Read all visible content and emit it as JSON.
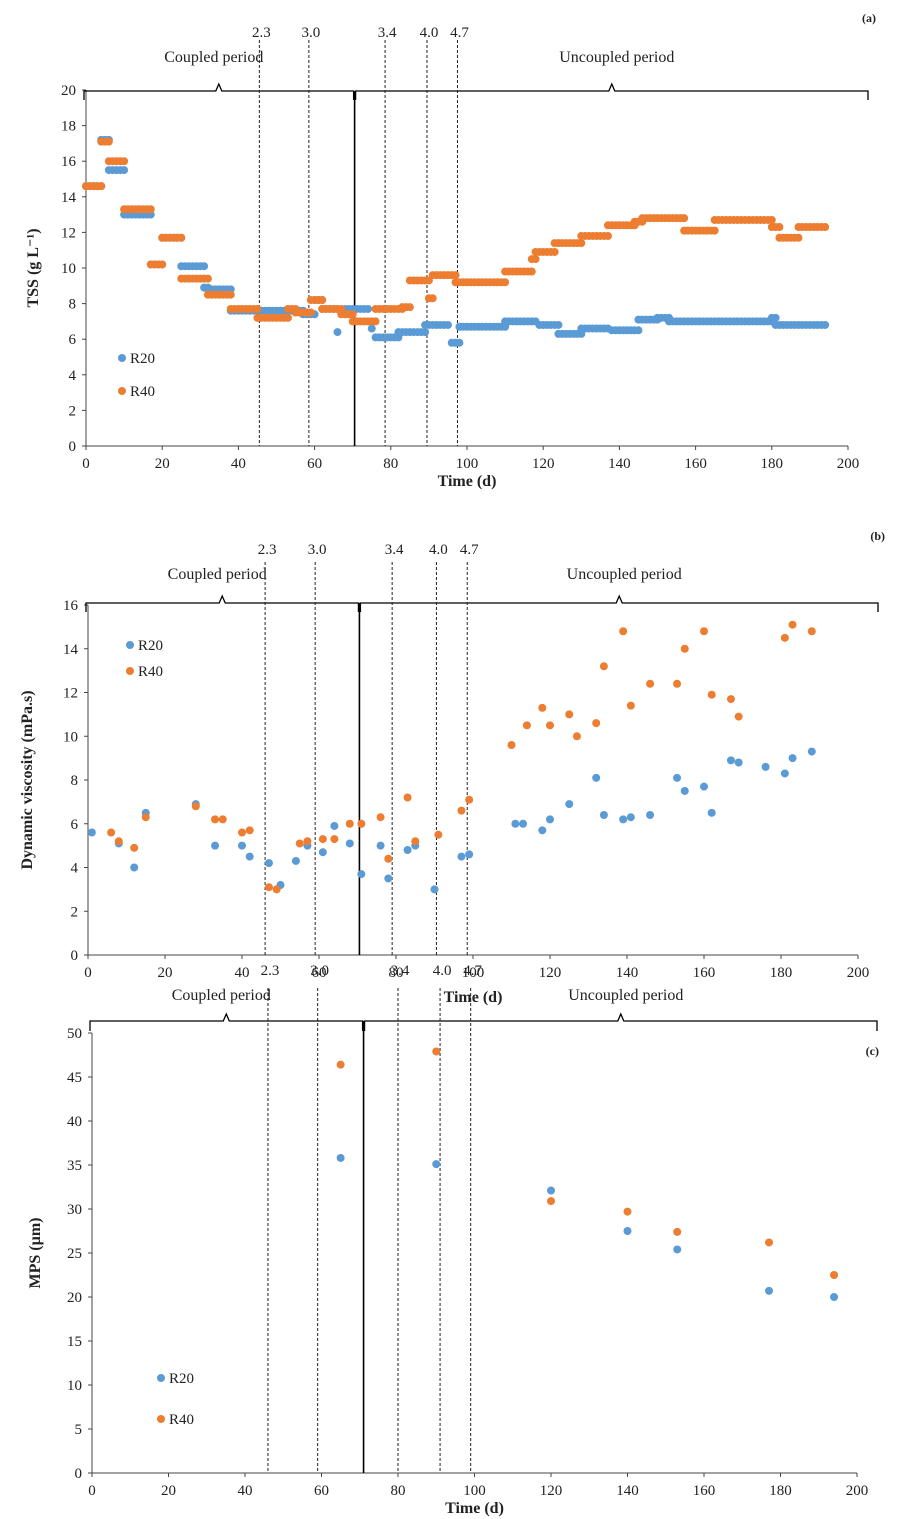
{
  "colors": {
    "R20": "#5b9bd5",
    "R40": "#ed7d31",
    "axis": "#444444",
    "text": "#222222"
  },
  "chart_data": [
    {
      "type": "scatter",
      "panel_label": "(a)",
      "xlabel": "Time (d)",
      "ylabel": "TSS (g L⁻¹)",
      "xlim": [
        0,
        200
      ],
      "ylim": [
        0,
        20
      ],
      "xticks": [
        0,
        20,
        40,
        60,
        80,
        100,
        120,
        140,
        160,
        180,
        200
      ],
      "yticks": [
        0,
        2,
        4,
        6,
        8,
        10,
        12,
        14,
        16,
        18,
        20
      ],
      "grid": false,
      "legend_position": "left",
      "period_labels": [
        "Coupled period",
        "Uncoupled period"
      ],
      "period_split_day": 70.5,
      "markers": [
        {
          "label": "2.3",
          "day": 45.5
        },
        {
          "label": "3.0",
          "day": 58.5
        },
        {
          "label": "3.4",
          "day": 78.5
        },
        {
          "label": "4.0",
          "day": 89.5
        },
        {
          "label": "4.7",
          "day": 97.5
        }
      ],
      "series": [
        {
          "name": "R20",
          "segments": [
            [
              0,
              4,
              14.6
            ],
            [
              4,
              6,
              17.2
            ],
            [
              6,
              10,
              15.5
            ],
            [
              10,
              17,
              13.0
            ],
            [
              17,
              20,
              10.2
            ],
            [
              20,
              25,
              11.7
            ],
            [
              25,
              31,
              10.1
            ],
            [
              31,
              32,
              8.9
            ],
            [
              32,
              38,
              8.8
            ],
            [
              38,
              45,
              7.6
            ],
            [
              45,
              57,
              7.6
            ],
            [
              57,
              60,
              7.4
            ],
            [
              60,
              62,
              8.2
            ],
            [
              62,
              66,
              7.7
            ],
            [
              68,
              74,
              7.7
            ],
            [
              76,
              82,
              6.1
            ],
            [
              82,
              89,
              6.4
            ],
            [
              89,
              95,
              6.8
            ],
            [
              96,
              98,
              5.8
            ],
            [
              98,
              110,
              6.7
            ],
            [
              110,
              118,
              7.0
            ],
            [
              119,
              124,
              6.8
            ],
            [
              124,
              130,
              6.3
            ],
            [
              130,
              137,
              6.6
            ],
            [
              138,
              145,
              6.5
            ],
            [
              145,
              150,
              7.1
            ],
            [
              150,
              153,
              7.2
            ],
            [
              153,
              180,
              7.0
            ],
            [
              180,
              181,
              7.2
            ],
            [
              181,
              194,
              6.8
            ]
          ],
          "points": [
            [
              66,
              6.4
            ],
            [
              75,
              6.6
            ]
          ]
        },
        {
          "name": "R40",
          "segments": [
            [
              0,
              4,
              14.6
            ],
            [
              4,
              6,
              17.1
            ],
            [
              6,
              10,
              16.0
            ],
            [
              10,
              17,
              13.3
            ],
            [
              17,
              20,
              10.2
            ],
            [
              20,
              25,
              11.7
            ],
            [
              25,
              32,
              9.4
            ],
            [
              32,
              38,
              8.5
            ],
            [
              38,
              45,
              7.7
            ],
            [
              45,
              53,
              7.2
            ],
            [
              53,
              55,
              7.7
            ],
            [
              55,
              59,
              7.5
            ],
            [
              59,
              62,
              8.2
            ],
            [
              62,
              67,
              7.7
            ],
            [
              67,
              70,
              7.4
            ],
            [
              70,
              76,
              7.0
            ],
            [
              76,
              83,
              7.7
            ],
            [
              83,
              85,
              7.8
            ],
            [
              85,
              90,
              9.3
            ],
            [
              90,
              91,
              8.3
            ],
            [
              91,
              97,
              9.6
            ],
            [
              97,
              110,
              9.2
            ],
            [
              110,
              117,
              9.8
            ],
            [
              117,
              118,
              10.5
            ],
            [
              118,
              123,
              10.9
            ],
            [
              123,
              130,
              11.4
            ],
            [
              130,
              137,
              11.8
            ],
            [
              137,
              144,
              12.4
            ],
            [
              144,
              146,
              12.6
            ],
            [
              146,
              157,
              12.8
            ],
            [
              157,
              165,
              12.1
            ],
            [
              165,
              180,
              12.7
            ],
            [
              180,
              182,
              12.3
            ],
            [
              182,
              187,
              11.7
            ],
            [
              187,
              194,
              12.3
            ]
          ],
          "points": []
        }
      ]
    },
    {
      "type": "scatter",
      "panel_label": "(b)",
      "xlabel": "Time (d)",
      "ylabel": "Dynamic viscosity (mPa.s)",
      "xlim": [
        0,
        200
      ],
      "ylim": [
        0,
        16
      ],
      "xticks": [
        0,
        20,
        40,
        60,
        80,
        100,
        120,
        140,
        160,
        180,
        200
      ],
      "yticks": [
        0,
        2,
        4,
        6,
        8,
        10,
        12,
        14,
        16
      ],
      "grid": false,
      "legend_position": "top-left",
      "period_labels": [
        "Coupled period",
        "Uncoupled period"
      ],
      "period_split_day": 70.5,
      "markers": [
        {
          "label": "2.3",
          "day": 46
        },
        {
          "label": "3.0",
          "day": 59
        },
        {
          "label": "3.4",
          "day": 79
        },
        {
          "label": "4.0",
          "day": 90.5
        },
        {
          "label": "4.7",
          "day": 98.5
        }
      ],
      "series": [
        {
          "name": "R20",
          "points": [
            [
              1,
              5.6
            ],
            [
              8,
              5.1
            ],
            [
              12,
              4.0
            ],
            [
              15,
              6.5
            ],
            [
              28,
              6.9
            ],
            [
              33,
              5.0
            ],
            [
              40,
              5.0
            ],
            [
              42,
              4.5
            ],
            [
              47,
              4.2
            ],
            [
              50,
              3.2
            ],
            [
              54,
              4.3
            ],
            [
              57,
              5.0
            ],
            [
              61,
              4.7
            ],
            [
              64,
              5.9
            ],
            [
              68,
              5.1
            ],
            [
              71,
              3.7
            ],
            [
              76,
              5.0
            ],
            [
              78,
              3.5
            ],
            [
              83,
              4.8
            ],
            [
              85,
              5.0
            ],
            [
              90,
              3.0
            ],
            [
              97,
              4.5
            ],
            [
              99,
              4.6
            ],
            [
              111,
              6.0
            ],
            [
              113,
              6.0
            ],
            [
              118,
              5.7
            ],
            [
              120,
              6.2
            ],
            [
              125,
              6.9
            ],
            [
              132,
              8.1
            ],
            [
              134,
              6.4
            ],
            [
              139,
              6.2
            ],
            [
              141,
              6.3
            ],
            [
              146,
              6.4
            ],
            [
              153,
              8.1
            ],
            [
              155,
              7.5
            ],
            [
              160,
              7.7
            ],
            [
              162,
              6.5
            ],
            [
              167,
              8.9
            ],
            [
              169,
              8.8
            ],
            [
              176,
              8.6
            ],
            [
              181,
              8.3
            ],
            [
              183,
              9.0
            ],
            [
              188,
              9.3
            ]
          ]
        },
        {
          "name": "R40",
          "points": [
            [
              6,
              5.6
            ],
            [
              8,
              5.2
            ],
            [
              12,
              4.9
            ],
            [
              15,
              6.3
            ],
            [
              28,
              6.8
            ],
            [
              33,
              6.2
            ],
            [
              35,
              6.2
            ],
            [
              40,
              5.6
            ],
            [
              42,
              5.7
            ],
            [
              47,
              3.1
            ],
            [
              49,
              3.0
            ],
            [
              55,
              5.1
            ],
            [
              57,
              5.2
            ],
            [
              61,
              5.3
            ],
            [
              64,
              5.3
            ],
            [
              68,
              6.0
            ],
            [
              71,
              6.0
            ],
            [
              76,
              6.3
            ],
            [
              78,
              4.4
            ],
            [
              83,
              7.2
            ],
            [
              85,
              5.2
            ],
            [
              91,
              5.5
            ],
            [
              97,
              6.6
            ],
            [
              99,
              7.1
            ],
            [
              110,
              9.6
            ],
            [
              114,
              10.5
            ],
            [
              118,
              11.3
            ],
            [
              120,
              10.5
            ],
            [
              125,
              11.0
            ],
            [
              127,
              10.0
            ],
            [
              132,
              10.6
            ],
            [
              134,
              13.2
            ],
            [
              139,
              14.8
            ],
            [
              141,
              11.4
            ],
            [
              146,
              12.4
            ],
            [
              153,
              12.4
            ],
            [
              155,
              14.0
            ],
            [
              160,
              14.8
            ],
            [
              162,
              11.9
            ],
            [
              167,
              11.7
            ],
            [
              169,
              10.9
            ],
            [
              181,
              14.5
            ],
            [
              183,
              15.1
            ],
            [
              188,
              14.8
            ]
          ]
        }
      ]
    },
    {
      "type": "scatter",
      "panel_label": "(c)",
      "xlabel": "Time (d)",
      "ylabel": "MPS (µm)",
      "xlim": [
        0,
        200
      ],
      "ylim": [
        0,
        50
      ],
      "xticks": [
        0,
        20,
        40,
        60,
        80,
        100,
        120,
        140,
        160,
        180,
        200
      ],
      "yticks": [
        0,
        5,
        10,
        15,
        20,
        25,
        30,
        35,
        40,
        45,
        50
      ],
      "grid": false,
      "legend_position": "bottom-left",
      "period_labels": [
        "Coupled period",
        "Uncoupled period"
      ],
      "period_split_day": 71,
      "markers": [
        {
          "label": "2.3",
          "day": 46
        },
        {
          "label": "3.0",
          "day": 59
        },
        {
          "label": "3.4",
          "day": 80
        },
        {
          "label": "4.0",
          "day": 91
        },
        {
          "label": "4.7",
          "day": 99
        }
      ],
      "series": [
        {
          "name": "R20",
          "points": [
            [
              65,
              35.8
            ],
            [
              90,
              35.1
            ],
            [
              120,
              32.1
            ],
            [
              140,
              27.5
            ],
            [
              153,
              25.4
            ],
            [
              177,
              20.7
            ],
            [
              194,
              20.0
            ]
          ]
        },
        {
          "name": "R40",
          "points": [
            [
              65,
              46.4
            ],
            [
              90,
              47.9
            ],
            [
              120,
              30.9
            ],
            [
              140,
              29.7
            ],
            [
              153,
              27.4
            ],
            [
              177,
              26.2
            ],
            [
              194,
              22.5
            ]
          ]
        }
      ]
    }
  ]
}
